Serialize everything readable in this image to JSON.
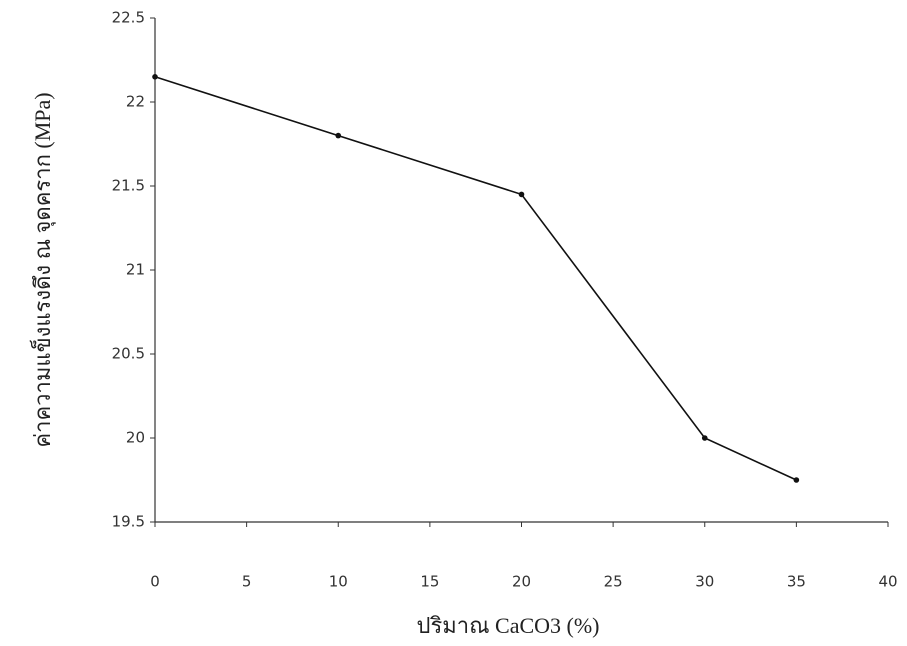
{
  "chart_data": {
    "type": "line",
    "x_label": "ปริมาณ CaCO3 (%)",
    "y_label": "ค่าความแข็งแรงดึง ณ จุดคราก (MPa)",
    "x": [
      0,
      10,
      20,
      30,
      35
    ],
    "series": [
      {
        "color": "#111111",
        "values": [
          22.15,
          21.8,
          21.45,
          20.0,
          19.75
        ]
      }
    ],
    "xlim": [
      0,
      40
    ],
    "xticks": [
      0,
      5,
      10,
      15,
      20,
      25,
      30,
      35,
      40
    ],
    "ylim": [
      19.5,
      22.5
    ],
    "yticks": [
      19.5,
      20,
      20.5,
      21,
      21.5,
      22,
      22.5
    ]
  }
}
